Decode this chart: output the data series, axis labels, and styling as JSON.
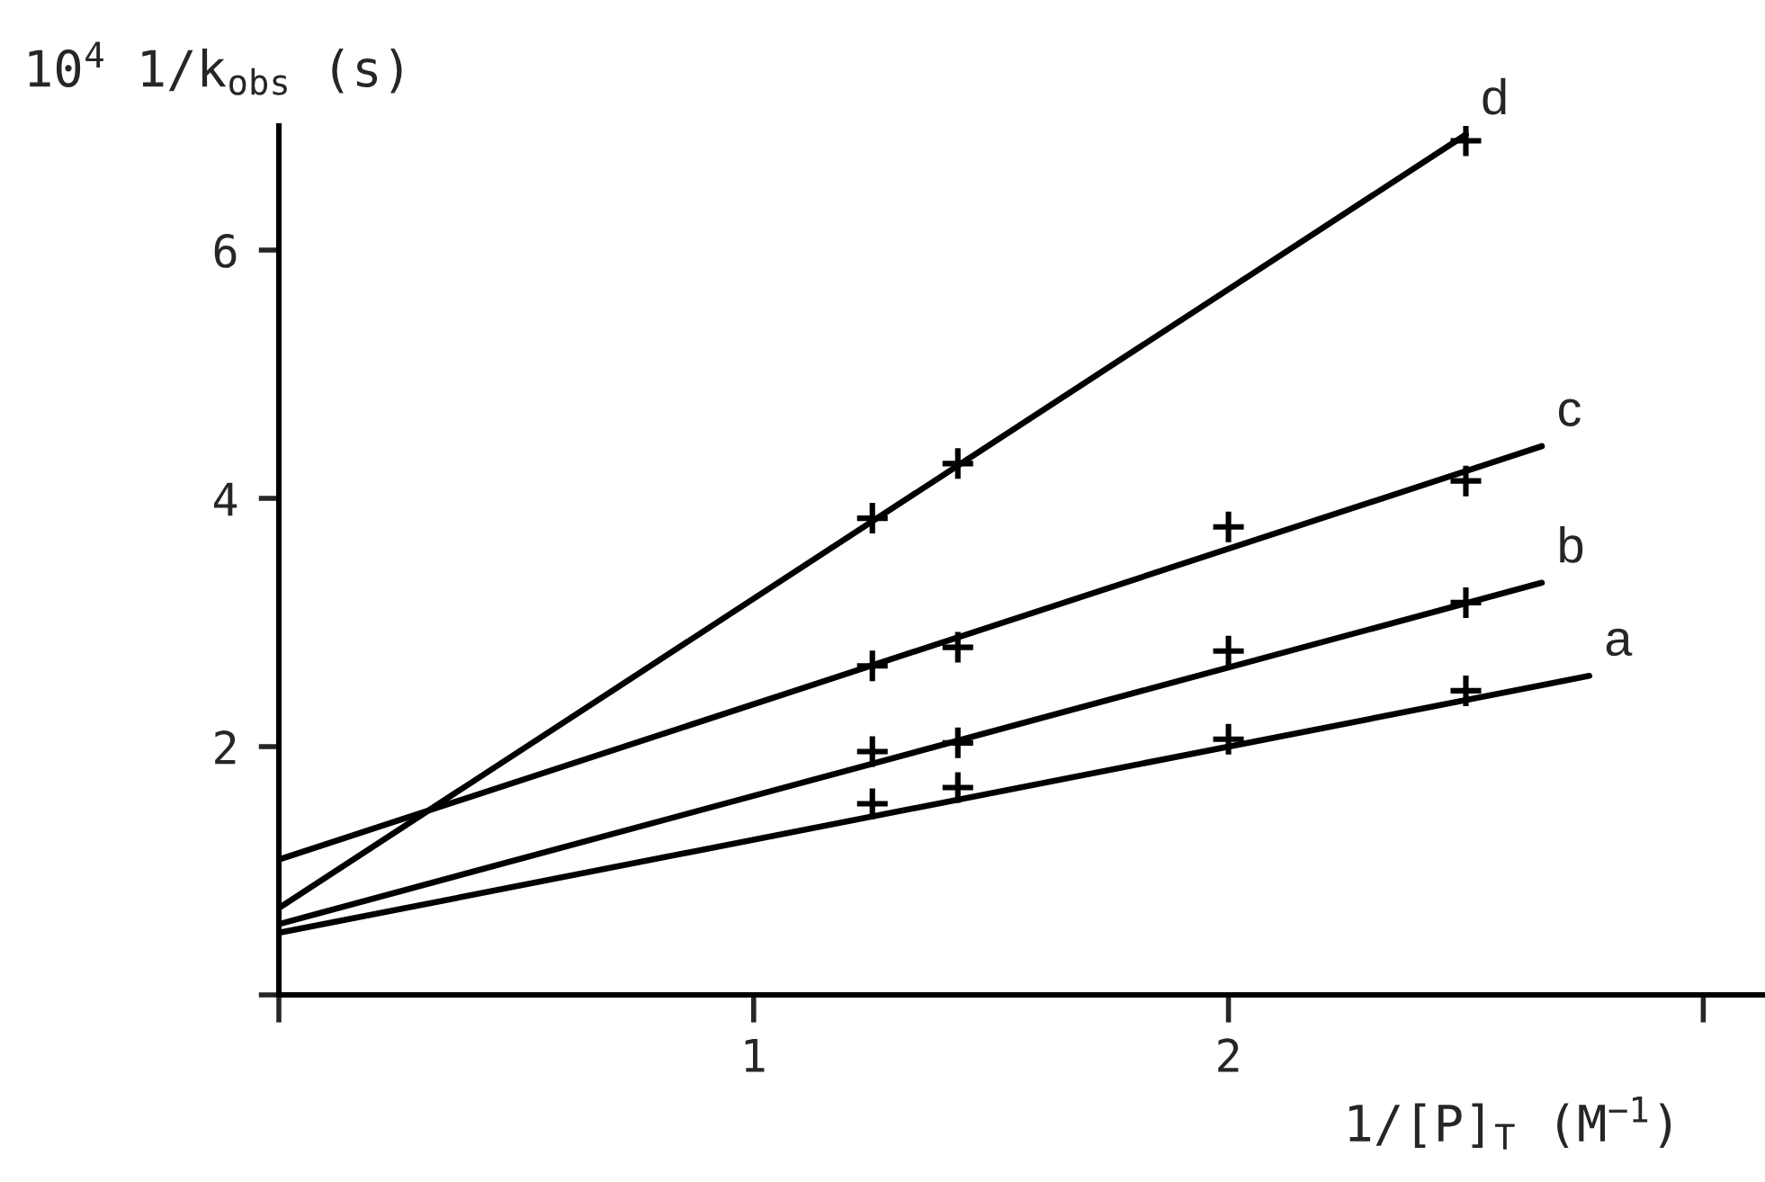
{
  "chart_data": {
    "type": "scatter",
    "xlabel": "1/[P]$_{T}$ (M$^{−1}$)",
    "ylabel": "10$^{4}$ 1/k$_{obs}$ (s)",
    "xlim": [
      0,
      3.13
    ],
    "ylim": [
      0,
      7.0
    ],
    "xticks": [
      {
        "value": 0,
        "label": null
      },
      1,
      2,
      {
        "value": 3,
        "label": null
      }
    ],
    "yticks": [
      {
        "value": 0,
        "label": null
      },
      2,
      4,
      6
    ],
    "grid": false,
    "series": [
      {
        "marker": "cross",
        "color": "#000000",
        "x": [
          1.25,
          1.43,
          2.0,
          2.5
        ],
        "values": [
          1.54,
          1.67,
          2.06,
          2.45
        ]
      },
      {
        "type": "line",
        "marker": "none",
        "name": "a",
        "color": "#000000",
        "x": [
          0,
          2.76
        ],
        "values": [
          0.5,
          2.57
        ]
      },
      {
        "marker": "cross",
        "color": "#000000",
        "x": [
          1.25,
          1.43,
          2.0,
          2.5
        ],
        "values": [
          1.96,
          2.03,
          2.77,
          3.16
        ]
      },
      {
        "type": "line",
        "marker": "none",
        "name": "b",
        "color": "#000000",
        "x": [
          0,
          2.66
        ],
        "values": [
          0.57,
          3.32
        ]
      },
      {
        "marker": "cross",
        "color": "#000000",
        "x": [
          1.25,
          1.43,
          2.0,
          2.5
        ],
        "values": [
          2.65,
          2.8,
          3.77,
          4.14
        ]
      },
      {
        "type": "line",
        "marker": "none",
        "name": "c",
        "color": "#000000",
        "x": [
          0,
          2.66
        ],
        "values": [
          1.09,
          4.42
        ]
      },
      {
        "marker": "cross",
        "color": "#000000",
        "x": [
          1.25,
          1.43,
          2.5
        ],
        "values": [
          3.84,
          4.28,
          6.88
        ]
      },
      {
        "type": "line",
        "marker": "none",
        "name": "d",
        "color": "#000000",
        "x": [
          0,
          2.5
        ],
        "values": [
          0.7,
          6.93
        ]
      }
    ]
  }
}
